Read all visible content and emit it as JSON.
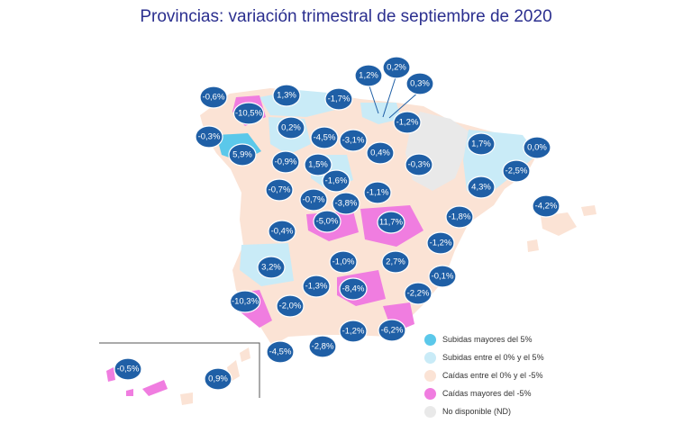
{
  "title": "Provincias: variación trimestral de septiembre de 2020",
  "colors": {
    "subidas_mayores_5": "#5bc8ea",
    "subidas_0_5": "#c9ebf7",
    "caidas_0_5": "#fbe3d5",
    "caidas_mayores_5": "#f07de0",
    "no_disponible": "#e9e9e9",
    "bubble": "#1f5fa6",
    "bubble_edge": "#ffffff"
  },
  "legend": [
    {
      "label": "Subidas mayores del 5%",
      "color": "#5bc8ea"
    },
    {
      "label": "Subidas entre el 0% y el 5%",
      "color": "#c9ebf7"
    },
    {
      "label": "Caídas entre el 0% y el -5%",
      "color": "#fbe3d5"
    },
    {
      "label": "Caídas mayores del -5%",
      "color": "#f07de0"
    },
    {
      "label": "No disponible (ND)",
      "color": "#e9e9e9"
    }
  ],
  "values": [
    "-0,6%",
    "-10,5%",
    "1,3%",
    "-1,7%",
    "1,2%",
    "0,2%",
    "0,3%",
    "-0,3%",
    "0,2%",
    "-4,5%",
    "-3,1%",
    "-1,2%",
    "5,9%",
    "-0,9%",
    "1,5%",
    "0,4%",
    "-0,3%",
    "1,7%",
    "0,0%",
    "-2,5%",
    "-1,6%",
    "-0,7%",
    "-0,7%",
    "-3,8%",
    "-1,1%",
    "4,3%",
    "-4,2%",
    "-5,0%",
    "11,7%",
    "-0,4%",
    "-1,8%",
    "-1,2%",
    "3,2%",
    "-1,0%",
    "2,7%",
    "-0,1%",
    "-10,3%",
    "-2,0%",
    "-1,3%",
    "-8,4%",
    "-2,2%",
    "-1,2%",
    "-6,2%",
    "-4,5%",
    "-2,8%",
    "-0,5%",
    "0,9%"
  ]
}
